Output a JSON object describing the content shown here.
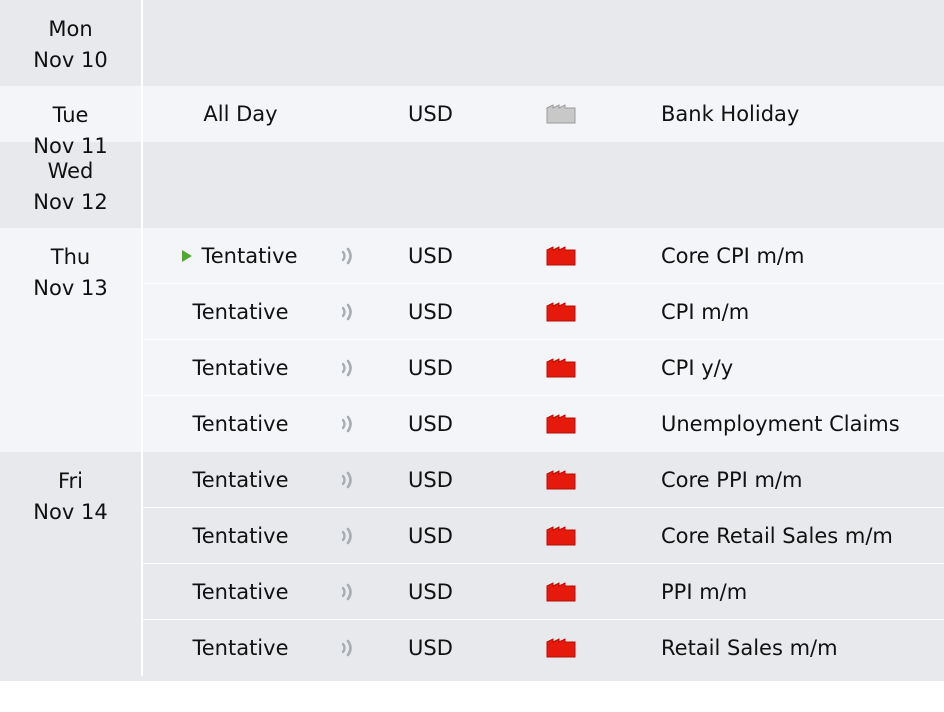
{
  "days": [
    {
      "dow": "Mon",
      "dm": "Nov 10",
      "band": "gray",
      "events": []
    },
    {
      "dow": "Tue",
      "dm": "Nov 11",
      "band": "light",
      "events": [
        {
          "time": "All Day",
          "speech": false,
          "currency": "USD",
          "impact": "non-economic",
          "title": "Bank Holiday",
          "next": false
        }
      ]
    },
    {
      "dow": "Wed",
      "dm": "Nov 12",
      "band": "gray",
      "events": []
    },
    {
      "dow": "Thu",
      "dm": "Nov 13",
      "band": "light",
      "events": [
        {
          "time": "Tentative",
          "speech": true,
          "currency": "USD",
          "impact": "high",
          "title": "Core CPI m/m",
          "next": true
        },
        {
          "time": "Tentative",
          "speech": true,
          "currency": "USD",
          "impact": "high",
          "title": "CPI m/m",
          "next": false
        },
        {
          "time": "Tentative",
          "speech": true,
          "currency": "USD",
          "impact": "high",
          "title": "CPI y/y",
          "next": false
        },
        {
          "time": "Tentative",
          "speech": true,
          "currency": "USD",
          "impact": "high",
          "title": "Unemployment Claims",
          "next": false
        }
      ]
    },
    {
      "dow": "Fri",
      "dm": "Nov 14",
      "band": "gray",
      "events": [
        {
          "time": "Tentative",
          "speech": true,
          "currency": "USD",
          "impact": "high",
          "title": "Core PPI m/m",
          "next": false
        },
        {
          "time": "Tentative",
          "speech": true,
          "currency": "USD",
          "impact": "high",
          "title": "Core Retail Sales m/m",
          "next": false
        },
        {
          "time": "Tentative",
          "speech": true,
          "currency": "USD",
          "impact": "high",
          "title": "PPI m/m",
          "next": false
        },
        {
          "time": "Tentative",
          "speech": true,
          "currency": "USD",
          "impact": "high",
          "title": "Retail Sales m/m",
          "next": false
        }
      ]
    }
  ],
  "colors": {
    "high_impact": "#e51a0c",
    "high_impact_dark": "#b50f05",
    "non_economic": "#c8c8c8",
    "non_economic_dark": "#9a9a9a",
    "next_event_arrow": "#4ea832",
    "speaker_icon": "#a7adb3"
  }
}
